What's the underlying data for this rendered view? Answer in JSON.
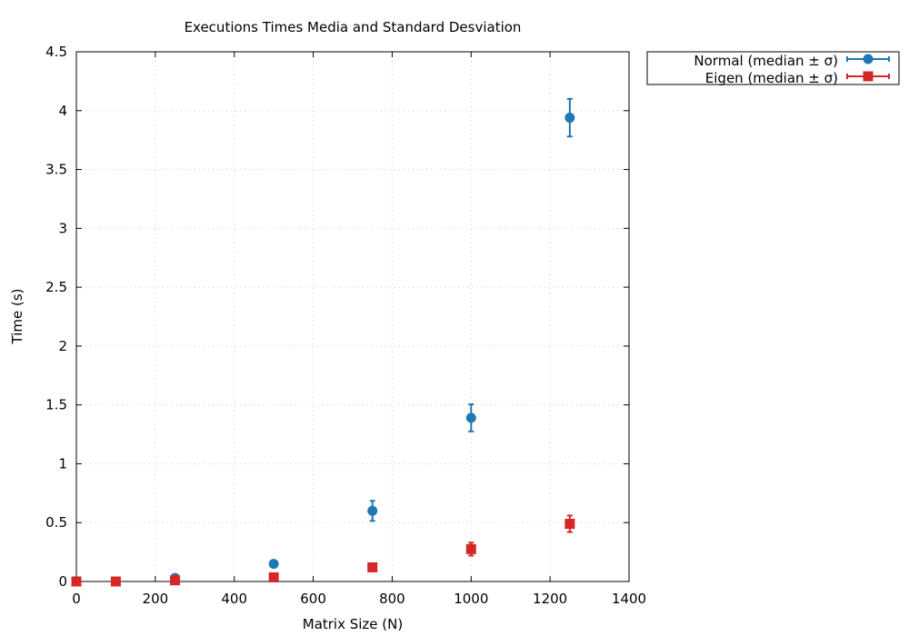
{
  "chart_data": {
    "type": "scatter",
    "title": "Executions Times Media and Standard Desviation",
    "xlabel": "Matrix Size (N)",
    "ylabel": "Time (s)",
    "xlim": [
      0,
      1400
    ],
    "ylim": [
      0,
      4.5
    ],
    "xticks": [
      "0",
      "200",
      "400",
      "600",
      "800",
      "1000",
      "1200",
      "1400"
    ],
    "yticks": [
      "0",
      "0.5",
      "1",
      "1.5",
      "2",
      "2.5",
      "3",
      "3.5",
      "4",
      "4.5"
    ],
    "grid": true,
    "legend_position": "outside-top-right",
    "series": [
      {
        "name": "Normal (median ± σ)",
        "color": "#1f77b4",
        "marker": "circle",
        "x": [
          0,
          250,
          500,
          750,
          1000,
          1250
        ],
        "y": [
          0.0,
          0.03,
          0.15,
          0.6,
          1.39,
          3.94
        ],
        "err": [
          0,
          0,
          0,
          0.085,
          0.115,
          0.16
        ]
      },
      {
        "name": "Eigen (median ± σ)",
        "color": "#d62728",
        "marker": "square",
        "x": [
          0,
          100,
          250,
          500,
          750,
          1000,
          1250
        ],
        "y": [
          0.0,
          0.0,
          0.01,
          0.035,
          0.12,
          0.275,
          0.49
        ],
        "err": [
          0,
          0,
          0,
          0,
          0,
          0.055,
          0.07
        ]
      }
    ]
  }
}
